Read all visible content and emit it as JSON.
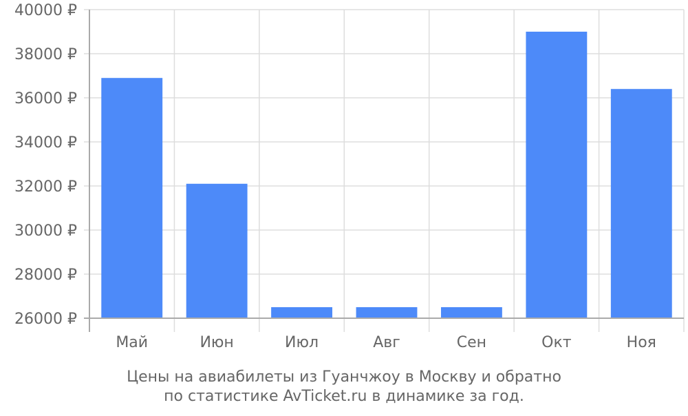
{
  "chart_data": {
    "type": "bar",
    "categories": [
      "Май",
      "Июн",
      "Июл",
      "Авг",
      "Сен",
      "Окт",
      "Ноя"
    ],
    "values": [
      36900,
      32100,
      26500,
      26500,
      26500,
      39000,
      36400
    ],
    "ylim": [
      26000,
      40000
    ],
    "yticks": [
      26000,
      28000,
      30000,
      32000,
      34000,
      36000,
      38000,
      40000
    ],
    "ytick_suffix": " ₽",
    "grid": true,
    "bar_color": "#4d8af9"
  },
  "caption": {
    "line1": "Цены на авиабилеты из Гуанчжоу в Москву и обратно",
    "line2": "по статистике AvTicket.ru в динамике за год."
  }
}
